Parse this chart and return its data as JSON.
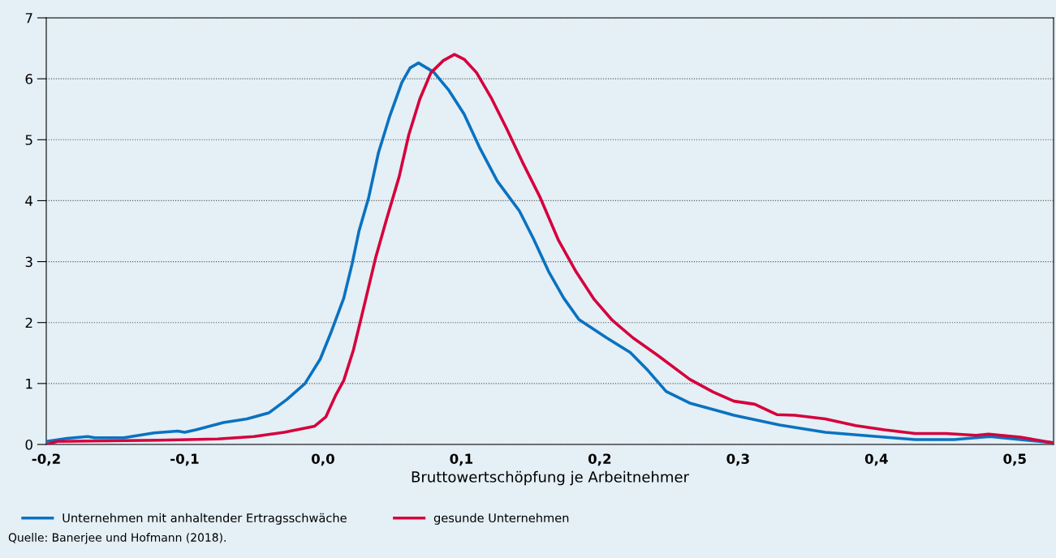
{
  "chart_data": {
    "type": "line",
    "xlabel": "Bruttowertschöpfung je Arbeitnehmer",
    "annotations": [
      "Quelle: Banerjee und Hofmann (2018)."
    ],
    "xlim": [
      -0.2,
      0.528
    ],
    "ylim": [
      0,
      7
    ],
    "xticks": [
      {
        "value": -0.2,
        "label": "-0,2"
      },
      {
        "value": -0.1,
        "label": "-0,1"
      },
      {
        "value": 0.0,
        "label": "0,0"
      },
      {
        "value": 0.1,
        "label": "0,1"
      },
      {
        "value": 0.2,
        "label": "0,2"
      },
      {
        "value": 0.3,
        "label": "0,3"
      },
      {
        "value": 0.4,
        "label": "0,4"
      },
      {
        "value": 0.5,
        "label": "0,5"
      }
    ],
    "yticks": [
      0,
      1,
      2,
      3,
      4,
      5,
      6,
      7
    ],
    "grid": "y",
    "legend": "bottom",
    "marker": "none",
    "line_style": "solid",
    "series": [
      {
        "name": "Unternehmen mit anhaltender Ertragsschwäche",
        "color": "#0a72c0",
        "x": [
          -0.2,
          -0.185,
          -0.17,
          -0.165,
          -0.144,
          -0.122,
          -0.105,
          -0.1,
          -0.092,
          -0.072,
          -0.055,
          -0.039,
          -0.026,
          -0.013,
          -0.002,
          0.006,
          0.015,
          0.021,
          0.026,
          0.033,
          0.04,
          0.048,
          0.057,
          0.063,
          0.069,
          0.08,
          0.091,
          0.102,
          0.113,
          0.126,
          0.142,
          0.152,
          0.163,
          0.174,
          0.185,
          0.205,
          0.222,
          0.235,
          0.248,
          0.265,
          0.297,
          0.33,
          0.363,
          0.395,
          0.428,
          0.456,
          0.482,
          0.504,
          0.527
        ],
        "values": [
          0.05,
          0.1,
          0.13,
          0.11,
          0.11,
          0.19,
          0.22,
          0.2,
          0.24,
          0.36,
          0.42,
          0.52,
          0.74,
          1.0,
          1.4,
          1.85,
          2.4,
          2.96,
          3.5,
          4.05,
          4.78,
          5.37,
          5.94,
          6.18,
          6.26,
          6.11,
          5.81,
          5.42,
          4.88,
          4.32,
          3.83,
          3.38,
          2.84,
          2.4,
          2.05,
          1.75,
          1.51,
          1.21,
          0.87,
          0.68,
          0.48,
          0.32,
          0.2,
          0.14,
          0.08,
          0.08,
          0.13,
          0.08,
          0.03
        ]
      },
      {
        "name": "gesunde Unternehmen",
        "color": "#d5003c",
        "x": [
          -0.2,
          -0.192,
          -0.118,
          -0.076,
          -0.05,
          -0.028,
          -0.006,
          0.002,
          0.009,
          0.015,
          0.022,
          0.03,
          0.038,
          0.046,
          0.055,
          0.062,
          0.07,
          0.078,
          0.087,
          0.095,
          0.102,
          0.111,
          0.122,
          0.133,
          0.144,
          0.157,
          0.17,
          0.183,
          0.196,
          0.209,
          0.224,
          0.242,
          0.265,
          0.282,
          0.297,
          0.312,
          0.328,
          0.341,
          0.363,
          0.385,
          0.406,
          0.428,
          0.45,
          0.472,
          0.481,
          0.504,
          0.527
        ],
        "values": [
          0.0,
          0.05,
          0.07,
          0.09,
          0.13,
          0.2,
          0.3,
          0.45,
          0.8,
          1.05,
          1.55,
          2.3,
          3.06,
          3.7,
          4.39,
          5.08,
          5.67,
          6.1,
          6.3,
          6.4,
          6.32,
          6.1,
          5.67,
          5.17,
          4.64,
          4.05,
          3.36,
          2.83,
          2.38,
          2.04,
          1.75,
          1.46,
          1.07,
          0.86,
          0.71,
          0.66,
          0.49,
          0.48,
          0.42,
          0.31,
          0.24,
          0.18,
          0.18,
          0.15,
          0.17,
          0.12,
          0.03
        ]
      }
    ]
  }
}
